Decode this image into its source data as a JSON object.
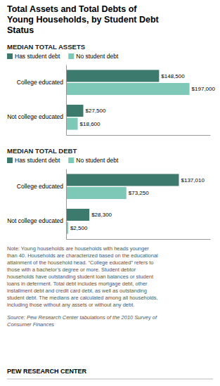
{
  "title": "Total Assets and Total Debts of\nYoung Households, by Student Debt\nStatus",
  "chart_data": [
    {
      "type": "bar",
      "orientation": "horizontal",
      "title": "MEDIAN TOTAL ASSETS",
      "categories": [
        "College educated",
        "Not college educated"
      ],
      "series": [
        {
          "name": "Has student debt",
          "color": "#3d7a6e",
          "values": [
            148500,
            27500
          ],
          "value_labels": [
            "$148,500",
            "$27,500"
          ]
        },
        {
          "name": "No student debt",
          "color": "#7ec8b8",
          "values": [
            197000,
            18600
          ],
          "value_labels": [
            "$197,000",
            "$18,600"
          ]
        }
      ],
      "xlim": [
        0,
        230000
      ],
      "tick_labels": "y",
      "data_labels": true,
      "legend": "top",
      "grid": false
    },
    {
      "type": "bar",
      "orientation": "horizontal",
      "title": "MEDIAN TOTAL DEBT",
      "categories": [
        "College educated",
        "Not college educated"
      ],
      "series": [
        {
          "name": "Has student debt",
          "color": "#3d7a6e",
          "values": [
            137010,
            28300
          ],
          "value_labels": [
            "$137,010",
            "$28,300"
          ]
        },
        {
          "name": "No student debt",
          "color": "#7ec8b8",
          "values": [
            73250,
            2500
          ],
          "value_labels": [
            "$73,250",
            "$2,500"
          ]
        }
      ],
      "xlim": [
        0,
        175000
      ],
      "tick_labels": "y",
      "data_labels": true,
      "legend": "top",
      "grid": false
    }
  ],
  "annotations": [
    "Note: Young households are households with heads younger\nthan 40. Households are characterized based on the educational\nattainment of the household head. “College educated” refers to\nthose with a bachelor’s degree or more. Student debtor\nhouseholds have outstanding student loan balances or student\nloans in deferment. Total debt includes mortgage debt, other\ninstallment debt and credit card debt, as well as outstanding\nstudent debt. The medians are calculated among all households,\nincluding those without any assets or without any debt.",
    "Source: Pew Research Center tabulations of the 2010 Survey of\nConsumer Finances",
    "PEW RESEARCH CENTER"
  ]
}
